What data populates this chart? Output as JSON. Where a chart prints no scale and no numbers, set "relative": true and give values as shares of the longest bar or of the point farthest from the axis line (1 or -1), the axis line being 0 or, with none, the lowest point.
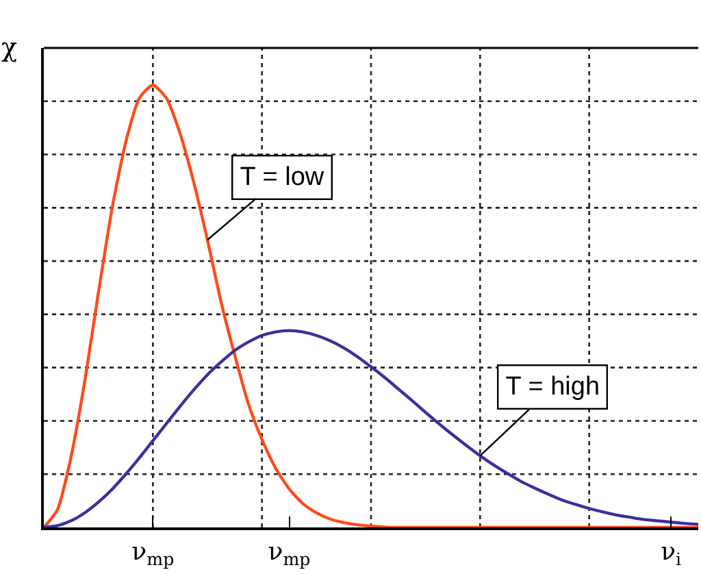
{
  "chart_data": {
    "type": "line",
    "relative": true,
    "ylabel": "χ",
    "categories": [
      null,
      null,
      null,
      null,
      null,
      null,
      null,
      null,
      "ν$_{mp}$",
      null,
      null,
      null,
      null,
      null,
      null,
      null,
      null,
      null,
      "ν$_{mp}$",
      null,
      null,
      null,
      null,
      null,
      null,
      null,
      null,
      null,
      null,
      null,
      null,
      null,
      null,
      null,
      null,
      null,
      null,
      null,
      null,
      null,
      null,
      null,
      null,
      null,
      null,
      null,
      "ν$_{i}$",
      null,
      null
    ],
    "series": [
      {
        "color": "#ff4a1c",
        "values": [
          0,
          0.04,
          0.16,
          0.33,
          0.53,
          0.72,
          0.87,
          0.97,
          1,
          0.97,
          0.89,
          0.78,
          0.65,
          0.51,
          0.39,
          0.28,
          0.199,
          0.134,
          0.087,
          0.054,
          0.033,
          0.019,
          0.011,
          0.006,
          0.003,
          0.001,
          0,
          0,
          0,
          0,
          0,
          0,
          0,
          0,
          0,
          0,
          0,
          0,
          0,
          0,
          0,
          0,
          0,
          0,
          0,
          0,
          0,
          0,
          0
        ]
      },
      {
        "color": "#3c2f9c",
        "values": [
          0,
          0.004,
          0.015,
          0.033,
          0.057,
          0.086,
          0.12,
          0.157,
          0.196,
          0.235,
          0.274,
          0.311,
          0.345,
          0.374,
          0.4,
          0.419,
          0.434,
          0.442,
          0.445,
          0.442,
          0.434,
          0.422,
          0.406,
          0.386,
          0.363,
          0.339,
          0.313,
          0.287,
          0.26,
          0.234,
          0.209,
          0.185,
          0.162,
          0.141,
          0.122,
          0.104,
          0.089,
          0.075,
          0.062,
          0.052,
          0.043,
          0.035,
          0.028,
          0.023,
          0.018,
          0.015,
          0.012,
          0.009,
          0.007
        ]
      }
    ],
    "annotations": [
      "T = low",
      "T = high"
    ],
    "grid": true,
    "marker": "none",
    "line_style": "solid"
  }
}
